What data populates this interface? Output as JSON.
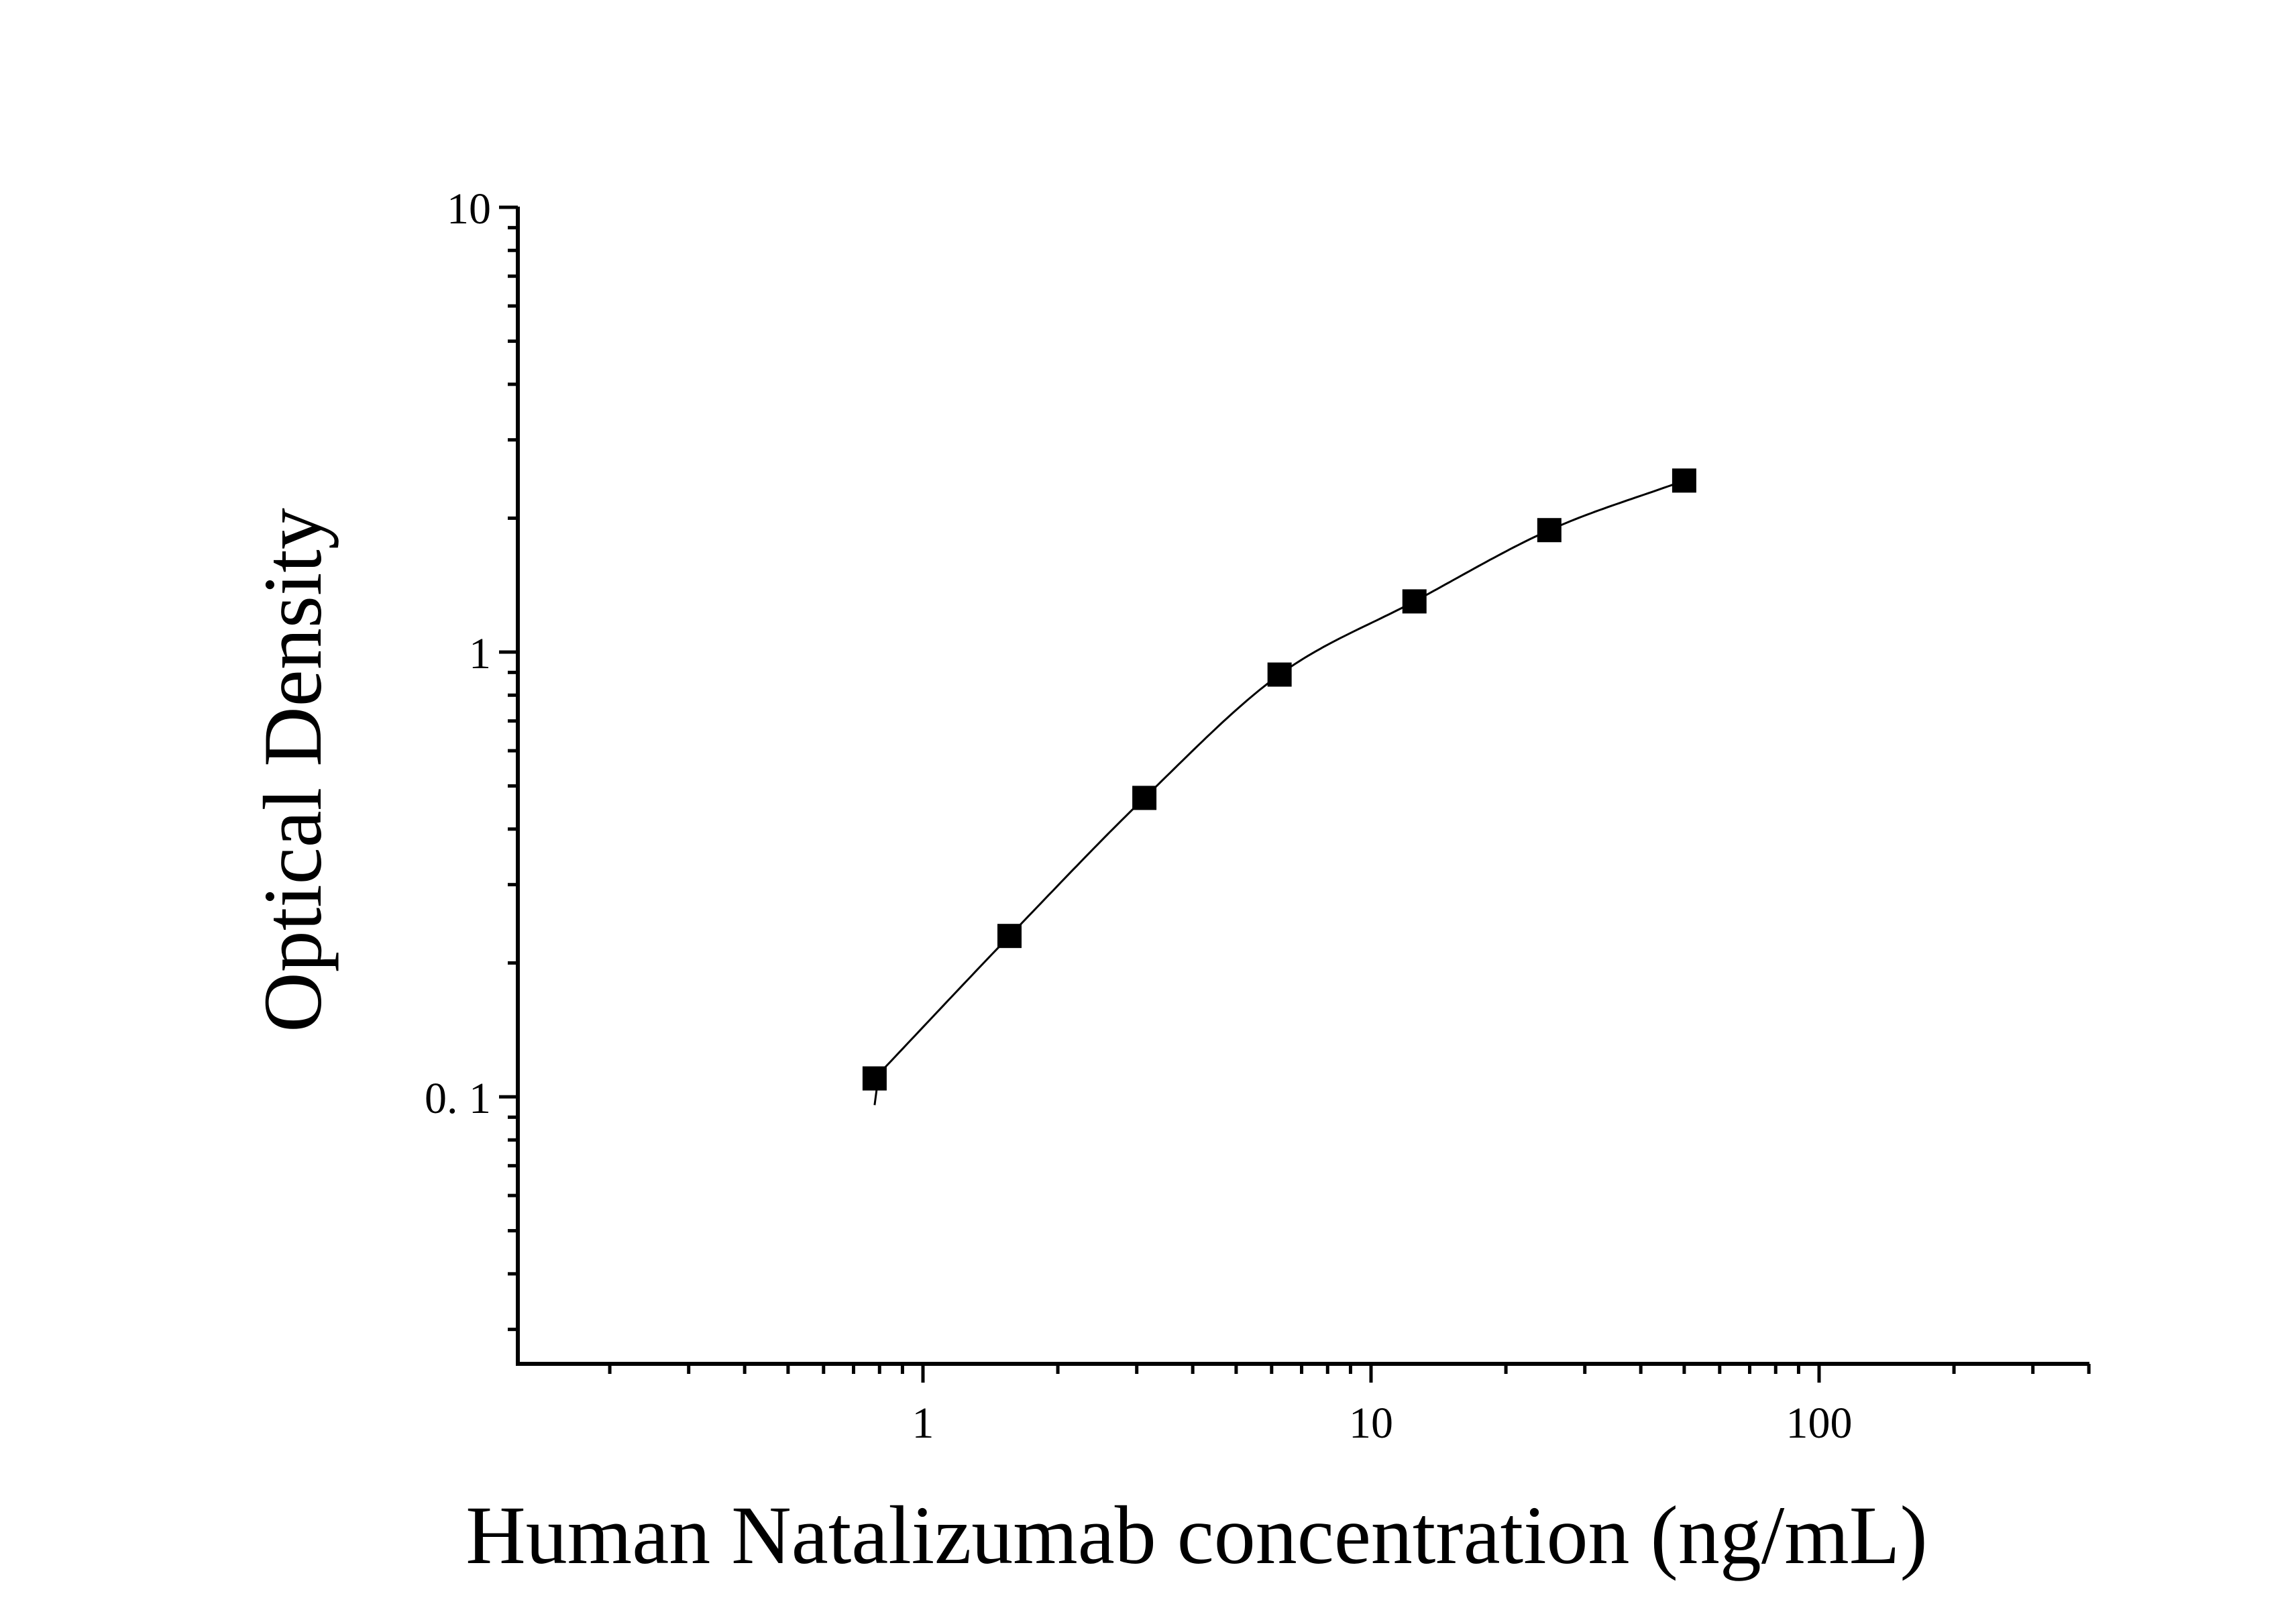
{
  "chart_data": {
    "type": "scatter",
    "title": "",
    "xlabel": "Human Natalizumab concentration (ng/mL)",
    "ylabel": "Optical Density",
    "x_scale": "log",
    "y_scale": "log",
    "xlim": [
      0.125,
      400
    ],
    "ylim": [
      0.025,
      10
    ],
    "x_ticks": [
      {
        "value": 1,
        "label": "1"
      },
      {
        "value": 10,
        "label": "10"
      },
      {
        "value": 100,
        "label": "100"
      }
    ],
    "y_ticks": [
      {
        "value": 0.1,
        "label": "0. 1"
      },
      {
        "value": 1,
        "label": "1"
      },
      {
        "value": 10,
        "label": "10"
      }
    ],
    "grid": false,
    "legend": "none",
    "series": [
      {
        "marker": "square",
        "color": "#000000",
        "x": [
          0.78,
          1.56,
          3.12,
          6.25,
          12.5,
          25,
          50
        ],
        "y": [
          0.11,
          0.23,
          0.47,
          0.89,
          1.3,
          1.88,
          2.43
        ]
      }
    ],
    "fit_curve": {
      "color": "#000000",
      "x_range": [
        0.78,
        50
      ]
    }
  }
}
